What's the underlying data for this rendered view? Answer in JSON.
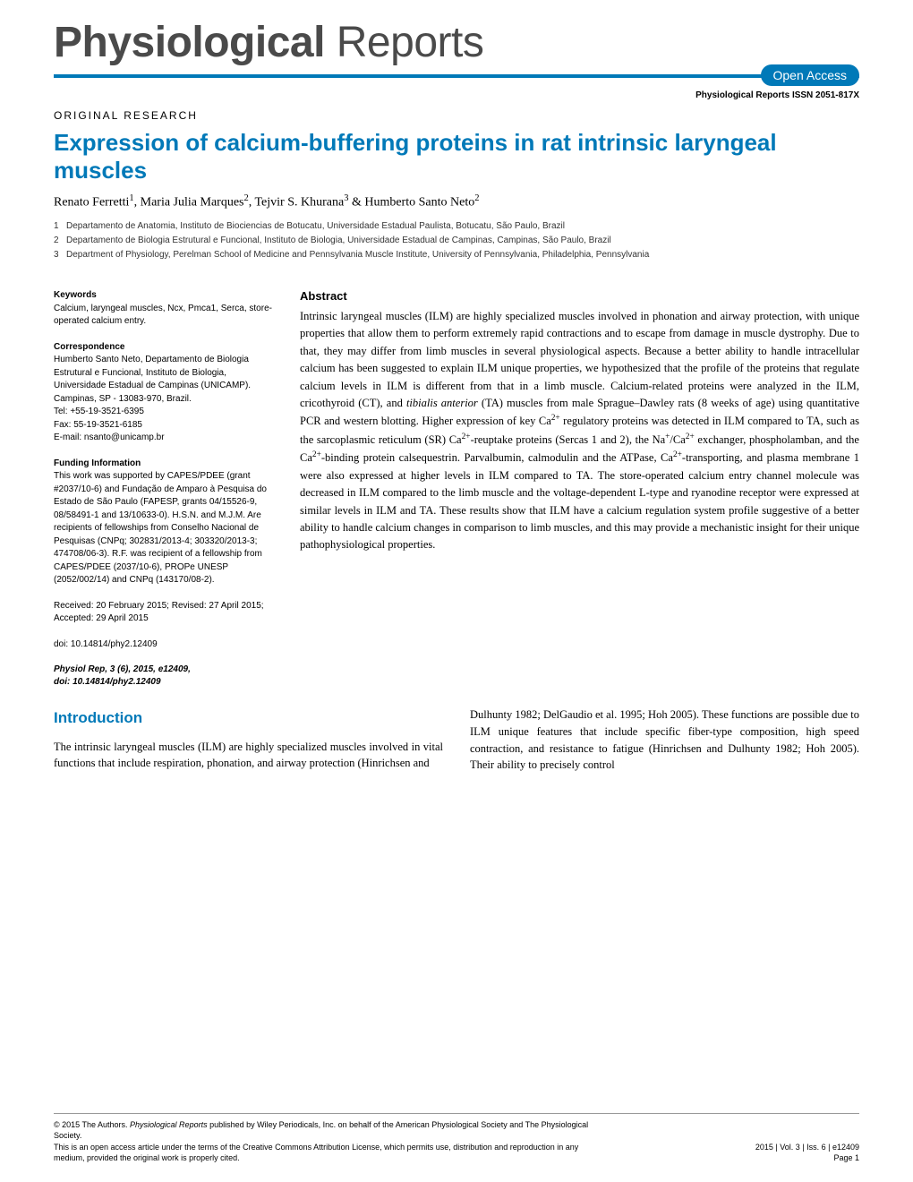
{
  "journal": {
    "title_bold": "Physiological",
    "title_light": " Reports",
    "open_access": "Open Access",
    "issn_line": "Physiological Reports ISSN 2051-817X"
  },
  "article": {
    "type": "ORIGINAL RESEARCH",
    "title": "Expression of calcium-buffering proteins in rat intrinsic laryngeal muscles",
    "authors_html": "Renato Ferretti<sup>1</sup>, Maria Julia Marques<sup>2</sup>, Tejvir S. Khurana<sup>3</sup> & Humberto Santo Neto<sup>2</sup>",
    "affiliations": [
      {
        "n": "1",
        "text": "Departamento de Anatomia, Instituto de Biociencias de Botucatu, Universidade Estadual Paulista, Botucatu, São Paulo, Brazil"
      },
      {
        "n": "2",
        "text": "Departamento de Biologia Estrutural e Funcional, Instituto de Biologia, Universidade Estadual de Campinas, Campinas, São Paulo, Brazil"
      },
      {
        "n": "3",
        "text": "Department of Physiology, Perelman School of Medicine and Pennsylvania Muscle Institute, University of Pennsylvania, Philadelphia, Pennsylvania"
      }
    ]
  },
  "sidebar": {
    "keywords_heading": "Keywords",
    "keywords": "Calcium, laryngeal muscles, Ncx, Pmca1, Serca, store-operated calcium entry.",
    "correspondence_heading": "Correspondence",
    "correspondence": "Humberto Santo Neto, Departamento de Biologia Estrutural e Funcional, Instituto de Biologia, Universidade Estadual de Campinas (UNICAMP). Campinas, SP - 13083-970, Brazil.\nTel: +55-19-3521-6395\nFax: 55-19-3521-6185\nE-mail: nsanto@unicamp.br",
    "funding_heading": "Funding Information",
    "funding": "This work was supported by CAPES/PDEE (grant #2037/10-6) and Fundação de Amparo à Pesquisa do Estado de São Paulo (FAPESP, grants 04/15526-9, 08/58491-1 and 13/10633-0). H.S.N. and M.J.M. Are recipients of fellowships from Conselho Nacional de Pesquisas (CNPq; 302831/2013-4; 303320/2013-3; 474708/06-3). R.F. was recipient of a fellowship from CAPES/PDEE (2037/10-6), PROPe UNESP (2052/002/14) and CNPq (143170/08-2).",
    "dates": "Received: 20 February 2015; Revised: 27 April 2015; Accepted: 29 April 2015",
    "doi": "doi: 10.14814/phy2.12409",
    "citation_line1": "Physiol Rep, 3 (6), 2015, e12409,",
    "citation_line2": "doi: 10.14814/phy2.12409"
  },
  "abstract": {
    "heading": "Abstract",
    "text": "Intrinsic laryngeal muscles (ILM) are highly specialized muscles involved in phonation and airway protection, with unique properties that allow them to perform extremely rapid contractions and to escape from damage in muscle dystrophy. Due to that, they may differ from limb muscles in several physiological aspects. Because a better ability to handle intracellular calcium has been suggested to explain ILM unique properties, we hypothesized that the profile of the proteins that regulate calcium levels in ILM is different from that in a limb muscle. Calcium-related proteins were analyzed in the ILM, cricothyroid (CT), and tibialis anterior (TA) muscles from male Sprague–Dawley rats (8 weeks of age) using quantitative PCR and western blotting. Higher expression of key Ca²⁺ regulatory proteins was detected in ILM compared to TA, such as the sarcoplasmic reticulum (SR) Ca²⁺-reuptake proteins (Sercas 1 and 2), the Na⁺/Ca²⁺ exchanger, phospholamban, and the Ca²⁺-binding protein calsequestrin. Parvalbumin, calmodulin and the ATPase, Ca²⁺-transporting, and plasma membrane 1 were also expressed at higher levels in ILM compared to TA. The store-operated calcium entry channel molecule was decreased in ILM compared to the limb muscle and the voltage-dependent L-type and ryanodine receptor were expressed at similar levels in ILM and TA. These results show that ILM have a calcium regulation system profile suggestive of a better ability to handle calcium changes in comparison to limb muscles, and this may provide a mechanistic insight for their unique pathophysiological properties."
  },
  "intro": {
    "heading": "Introduction",
    "col1": "The intrinsic laryngeal muscles (ILM) are highly specialized muscles involved in vital functions that include respiration, phonation, and airway protection (Hinrichsen and",
    "col2": "Dulhunty 1982; DelGaudio et al. 1995; Hoh 2005). These functions are possible due to ILM unique features that include specific fiber-type composition, high speed contraction, and resistance to fatigue (Hinrichsen and Dulhunty 1982; Hoh 2005). Their ability to precisely control"
  },
  "footer": {
    "copyright": "© 2015 The Authors. Physiological Reports published by Wiley Periodicals, Inc. on behalf of the American Physiological Society and The Physiological Society.\nThis is an open access article under the terms of the Creative Commons Attribution License, which permits use, distribution and reproduction in any medium, provided the original work is properly cited.",
    "right1": "2015 | Vol. 3 | Iss. 6 | e12409",
    "right2": "Page 1"
  },
  "colors": {
    "accent": "#0079b8",
    "text": "#000000",
    "bg": "#ffffff"
  }
}
